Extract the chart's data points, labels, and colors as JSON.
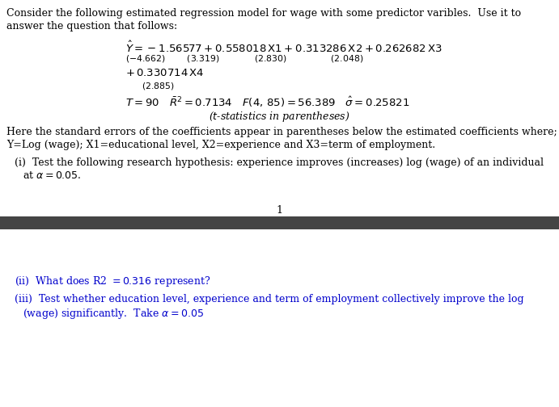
{
  "bg_color": "#ffffff",
  "dark_bar_color": "#444444",
  "text_color_black": "#000000",
  "text_color_blue": "#0000cc",
  "fs_body": 9.0,
  "fs_math": 9.5,
  "fs_small": 7.8,
  "intro_line1": "Consider the following estimated regression model for wage with some predictor varibles.  Use it to",
  "intro_line2": "answer the question that follows:",
  "here_line1": "Here the standard errors of the coefficients appear in parentheses below the estimated coefficients where;",
  "here_line2": "Y=Log (wage); X1=educational level, X2=experience and X3=term of employment.",
  "qi_line1": "(i)  Test the following research hypothesis: experience improves (increases) log (wage) of an individual",
  "qi_line2": "at \\u03b1 = 0.05.",
  "page_num": "1",
  "qii_line": "(ii)  What does R2 = 0.316 represent?",
  "qiii_line1": "(iii)  Test whether education level, experience and term of employment collectively improve the log",
  "qiii_line2": "(wage) significantly.  Take \\u03b1 = 0.05"
}
